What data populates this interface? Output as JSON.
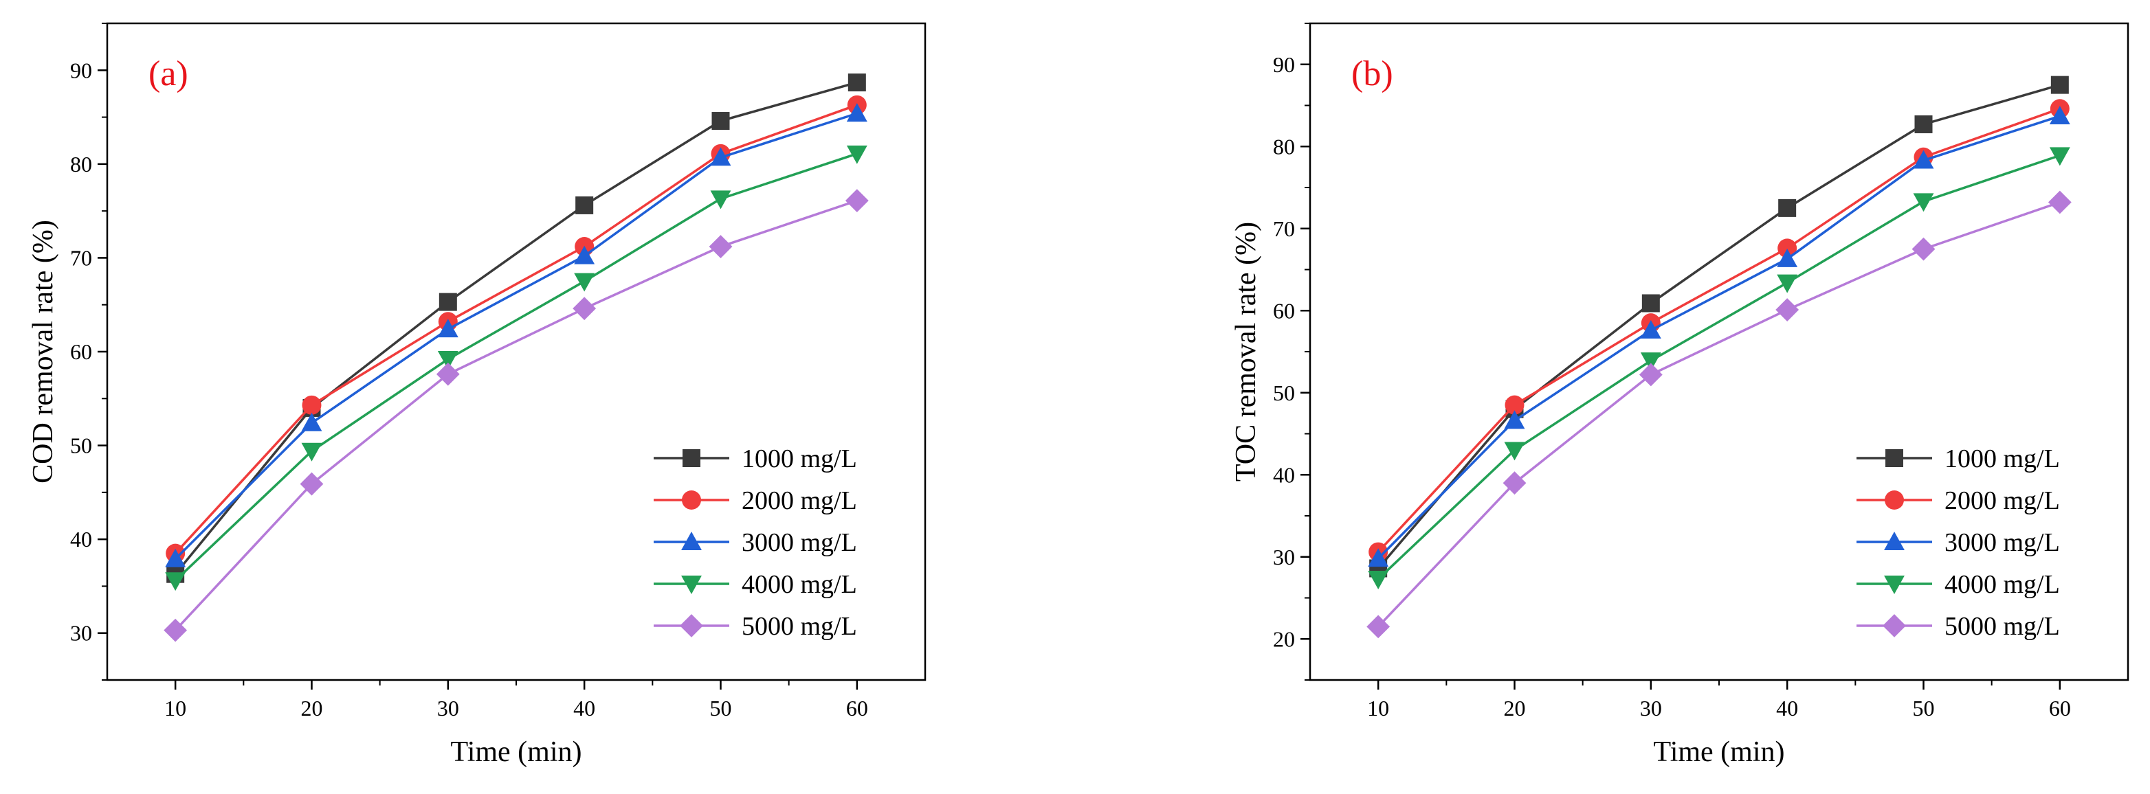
{
  "chart_data": [
    {
      "type": "line",
      "panel_label": "(a)",
      "title": "",
      "xlabel": "Time (min)",
      "ylabel": "COD removal rate (%)",
      "xlim": [
        5,
        65
      ],
      "ylim": [
        25,
        95
      ],
      "xticks": [
        10,
        20,
        30,
        40,
        50,
        60
      ],
      "yticks": [
        30,
        40,
        50,
        60,
        70,
        80,
        90
      ],
      "x": [
        10,
        20,
        30,
        40,
        50,
        60
      ],
      "legend_position": "bottom-right",
      "series": [
        {
          "name": "1000 mg/L",
          "color": "#3a3a3a",
          "marker": "square",
          "values": [
            36.3,
            54.0,
            65.3,
            75.6,
            84.6,
            88.7
          ]
        },
        {
          "name": "2000 mg/L",
          "color": "#f03c3c",
          "marker": "circle",
          "values": [
            38.5,
            54.3,
            63.2,
            71.2,
            81.1,
            86.3
          ]
        },
        {
          "name": "3000 mg/L",
          "color": "#1f5fd6",
          "marker": "triangle-up",
          "values": [
            37.9,
            52.4,
            62.4,
            70.2,
            80.7,
            85.4
          ]
        },
        {
          "name": "4000 mg/L",
          "color": "#22a055",
          "marker": "triangle-down",
          "values": [
            35.6,
            49.4,
            59.2,
            67.5,
            76.3,
            81.1
          ]
        },
        {
          "name": "5000 mg/L",
          "color": "#b57ad8",
          "marker": "diamond",
          "values": [
            30.3,
            45.9,
            57.6,
            64.6,
            71.2,
            76.1
          ]
        }
      ]
    },
    {
      "type": "line",
      "panel_label": "(b)",
      "title": "",
      "xlabel": "Time (min)",
      "ylabel": "TOC removal rate (%)",
      "xlim": [
        5,
        65
      ],
      "ylim": [
        15,
        95
      ],
      "xticks": [
        10,
        20,
        30,
        40,
        50,
        60
      ],
      "yticks": [
        20,
        30,
        40,
        50,
        60,
        70,
        80,
        90
      ],
      "x": [
        10,
        20,
        30,
        40,
        50,
        60
      ],
      "legend_position": "bottom-right",
      "series": [
        {
          "name": "1000 mg/L",
          "color": "#3a3a3a",
          "marker": "square",
          "values": [
            28.6,
            48.0,
            60.9,
            72.5,
            82.7,
            87.5
          ]
        },
        {
          "name": "2000 mg/L",
          "color": "#f03c3c",
          "marker": "circle",
          "values": [
            30.6,
            48.5,
            58.5,
            67.6,
            78.7,
            84.6
          ]
        },
        {
          "name": "3000 mg/L",
          "color": "#1f5fd6",
          "marker": "triangle-up",
          "values": [
            29.8,
            46.6,
            57.6,
            66.3,
            78.3,
            83.7
          ]
        },
        {
          "name": "4000 mg/L",
          "color": "#22a055",
          "marker": "triangle-down",
          "values": [
            27.3,
            43.0,
            53.9,
            63.4,
            73.3,
            78.9
          ]
        },
        {
          "name": "5000 mg/L",
          "color": "#b57ad8",
          "marker": "diamond",
          "values": [
            21.5,
            39.0,
            52.2,
            60.1,
            67.5,
            73.2
          ]
        }
      ]
    }
  ]
}
